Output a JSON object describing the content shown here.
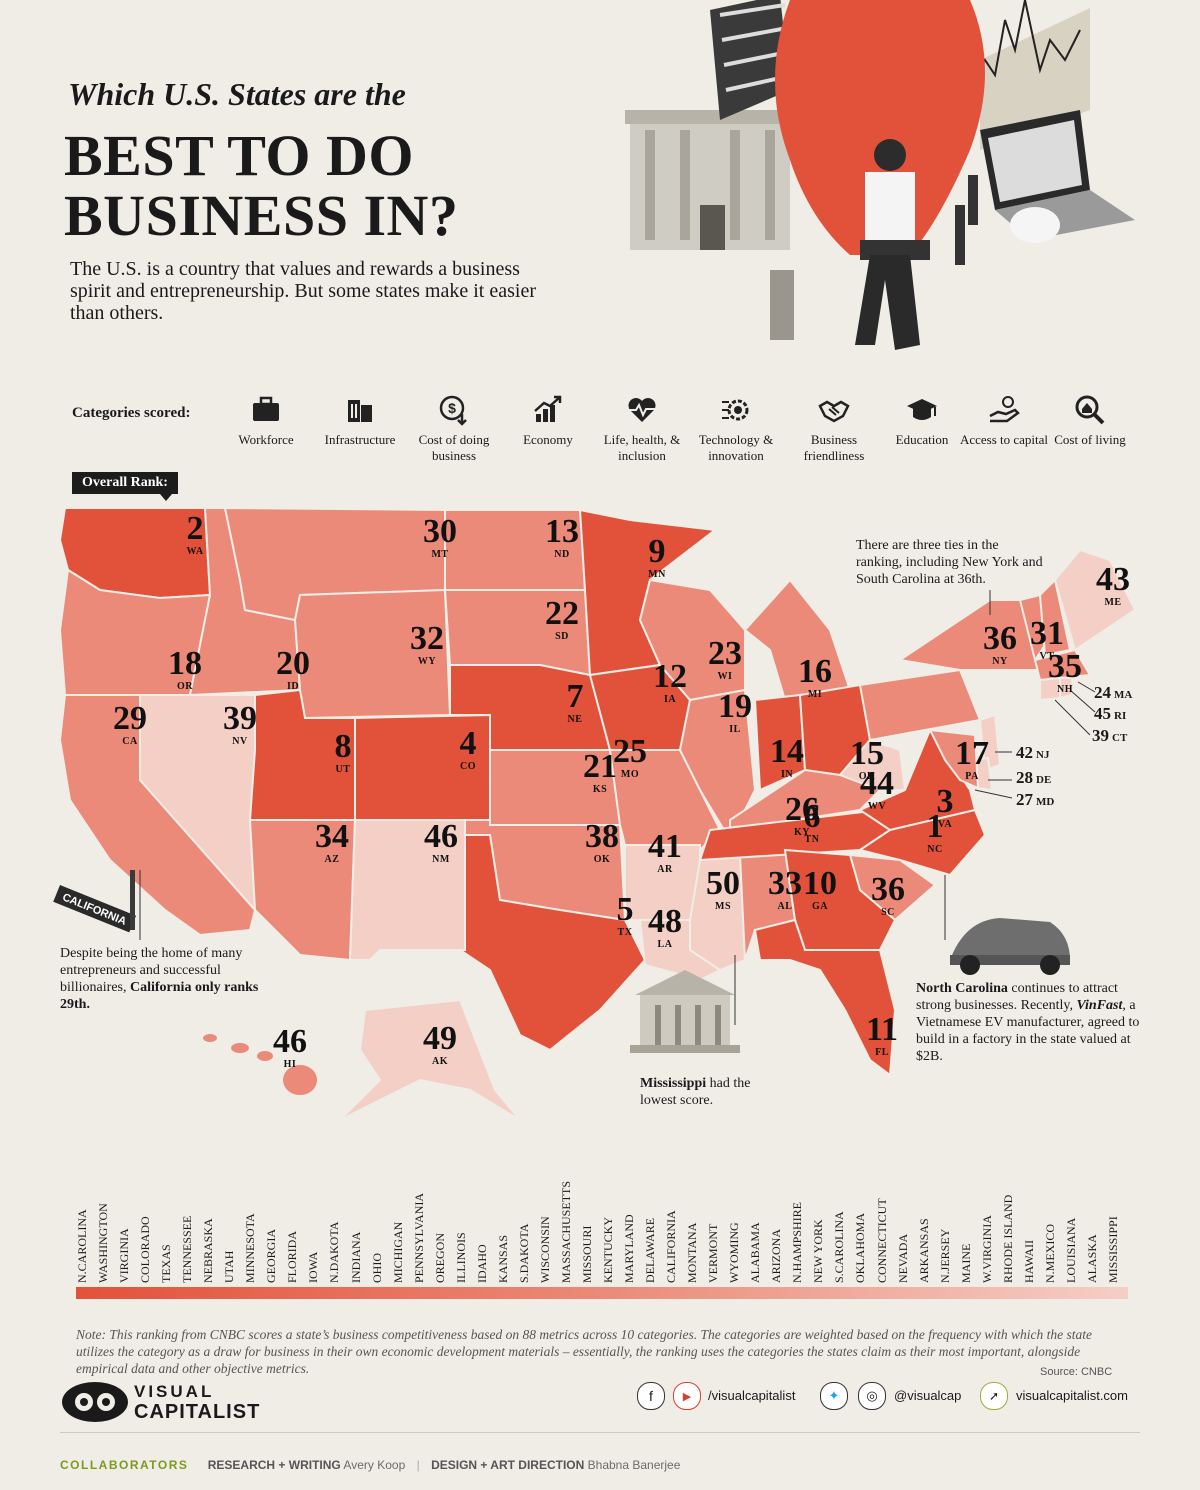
{
  "header": {
    "subtitle": "Which U.S. States are the",
    "title_line1": "BEST TO DO",
    "title_line2": "BUSINESS IN?",
    "intro": "The U.S. is a country that values and rewards a business spirit and entrepreneurship. But some states make it easier than others."
  },
  "categories_label": "Categories scored:",
  "categories": [
    {
      "label": "Workforce",
      "icon": "briefcase-icon"
    },
    {
      "label": "Infrastructure",
      "icon": "buildings-icon"
    },
    {
      "label": "Cost of doing business",
      "icon": "dollar-down-icon"
    },
    {
      "label": "Economy",
      "icon": "chart-up-icon"
    },
    {
      "label": "Life, health, & inclusion",
      "icon": "heartbeat-icon"
    },
    {
      "label": "Technology & innovation",
      "icon": "gear-circuit-icon"
    },
    {
      "label": "Business friendliness",
      "icon": "handshake-icon"
    },
    {
      "label": "Education",
      "icon": "graduation-cap-icon"
    },
    {
      "label": "Access to capital",
      "icon": "hand-coin-icon"
    },
    {
      "label": "Cost of living",
      "icon": "house-search-icon"
    }
  ],
  "overall_rank_label": "Overall Rank:",
  "colors": {
    "dark": "#e2523b",
    "mid": "#eb8a78",
    "light": "#f4cfc6",
    "bg": "#efede6"
  },
  "map_states": [
    {
      "rank": "2",
      "abbr": "WA"
    },
    {
      "rank": "30",
      "abbr": "MT"
    },
    {
      "rank": "13",
      "abbr": "ND"
    },
    {
      "rank": "9",
      "abbr": "MN"
    },
    {
      "rank": "43",
      "abbr": "ME"
    },
    {
      "rank": "22",
      "abbr": "SD"
    },
    {
      "rank": "32",
      "abbr": "WY"
    },
    {
      "rank": "18",
      "abbr": "OR"
    },
    {
      "rank": "20",
      "abbr": "ID"
    },
    {
      "rank": "23",
      "abbr": "WI"
    },
    {
      "rank": "16",
      "abbr": "MI"
    },
    {
      "rank": "36",
      "abbr": "NY"
    },
    {
      "rank": "31",
      "abbr": "VT"
    },
    {
      "rank": "35",
      "abbr": "NH"
    },
    {
      "rank": "12",
      "abbr": "IA"
    },
    {
      "rank": "7",
      "abbr": "NE"
    },
    {
      "rank": "29",
      "abbr": "CA"
    },
    {
      "rank": "39",
      "abbr": "NV"
    },
    {
      "rank": "8",
      "abbr": "UT"
    },
    {
      "rank": "4",
      "abbr": "CO"
    },
    {
      "rank": "19",
      "abbr": "IL"
    },
    {
      "rank": "14",
      "abbr": "IN"
    },
    {
      "rank": "15",
      "abbr": "OH"
    },
    {
      "rank": "17",
      "abbr": "PA"
    },
    {
      "rank": "25",
      "abbr": "MO"
    },
    {
      "rank": "21",
      "abbr": "KS"
    },
    {
      "rank": "44",
      "abbr": "WV"
    },
    {
      "rank": "26",
      "abbr": "KY"
    },
    {
      "rank": "3",
      "abbr": "VA"
    },
    {
      "rank": "34",
      "abbr": "AZ"
    },
    {
      "rank": "46",
      "abbr": "NM"
    },
    {
      "rank": "38",
      "abbr": "OK"
    },
    {
      "rank": "41",
      "abbr": "AR"
    },
    {
      "rank": "6",
      "abbr": "TN"
    },
    {
      "rank": "1",
      "abbr": "NC"
    },
    {
      "rank": "50",
      "abbr": "MS"
    },
    {
      "rank": "33",
      "abbr": "AL"
    },
    {
      "rank": "10",
      "abbr": "GA"
    },
    {
      "rank": "36",
      "abbr": "SC"
    },
    {
      "rank": "5",
      "abbr": "TX"
    },
    {
      "rank": "48",
      "abbr": "LA"
    },
    {
      "rank": "11",
      "abbr": "FL"
    },
    {
      "rank": "46",
      "abbr": "HI"
    },
    {
      "rank": "49",
      "abbr": "AK"
    }
  ],
  "side_states": [
    {
      "rank": "24",
      "abbr": "MA"
    },
    {
      "rank": "45",
      "abbr": "RI"
    },
    {
      "rank": "39",
      "abbr": "CT"
    },
    {
      "rank": "42",
      "abbr": "NJ"
    },
    {
      "rank": "28",
      "abbr": "DE"
    },
    {
      "rank": "27",
      "abbr": "MD"
    }
  ],
  "annotations": {
    "ties": "There are three ties in the ranking, including New York and South Carolina at 36th.",
    "california_sign": "CALIFORNIA",
    "california_pre": "Despite being the home of many entrepreneurs and successful billionaires, ",
    "california_bold": "California only ranks 29th.",
    "nc_bold": "North Carolina",
    "nc_text1": " continues to attract strong businesses. Recently, ",
    "nc_brand": "VinFast",
    "nc_text2": ", a Vietnamese EV manufacturer, agreed to build in a factory in the state valued at $2B.",
    "ms_bold": "Mississippi",
    "ms_text": " had the lowest score."
  },
  "ranking_bar": [
    "N.CAROLINA",
    "WASHINGTON",
    "VIRGINIA",
    "COLORADO",
    "TEXAS",
    "TENNESSEE",
    "NEBRASKA",
    "UTAH",
    "MINNESOTA",
    "GEORGIA",
    "FLORIDA",
    "IOWA",
    "N.DAKOTA",
    "INDIANA",
    "OHIO",
    "MICHIGAN",
    "PENNSYLVANIA",
    "OREGON",
    "ILLINOIS",
    "IDAHO",
    "KANSAS",
    "S.DAKOTA",
    "WISCONSIN",
    "MASSACHUSETTS",
    "MISSOURI",
    "KENTUCKY",
    "MARYLAND",
    "DELAWARE",
    "CALIFORNIA",
    "MONTANA",
    "VERMONT",
    "WYOMING",
    "ALABAMA",
    "ARIZONA",
    "N.HAMPSHIRE",
    "NEW YORK",
    "S.CAROLINA",
    "OKLAHOMA",
    "CONNECTICUT",
    "NEVADA",
    "ARKANSAS",
    "N.JERSEY",
    "MAINE",
    "W.VIRGINIA",
    "RHODE ISLAND",
    "HAWAII",
    "N.MEXICO",
    "LOUISIANA",
    "ALASKA",
    "MISSISSIPPI"
  ],
  "note": "Note: This ranking from CNBC scores a state’s business competitiveness based on 88 metrics across 10 categories. The categories are weighted based on the frequency with which the state utilizes the category as a draw for business in their own economic development materials – essentially, the ranking uses the categories the states claim as their most important, alongside empirical data and other objective metrics.",
  "source": "Source: CNBC",
  "footer": {
    "brand_top": "VISUAL",
    "brand_bottom": "CAPITALIST",
    "social1": "/visualcapitalist",
    "social2": "@visualcap",
    "website": "visualcapitalist.com",
    "collaborators": "COLLABORATORS",
    "research_label": "RESEARCH + WRITING",
    "research_name": "Avery Koop",
    "design_label": "DESIGN + ART DIRECTION",
    "design_name": "Bhabna Banerjee"
  }
}
